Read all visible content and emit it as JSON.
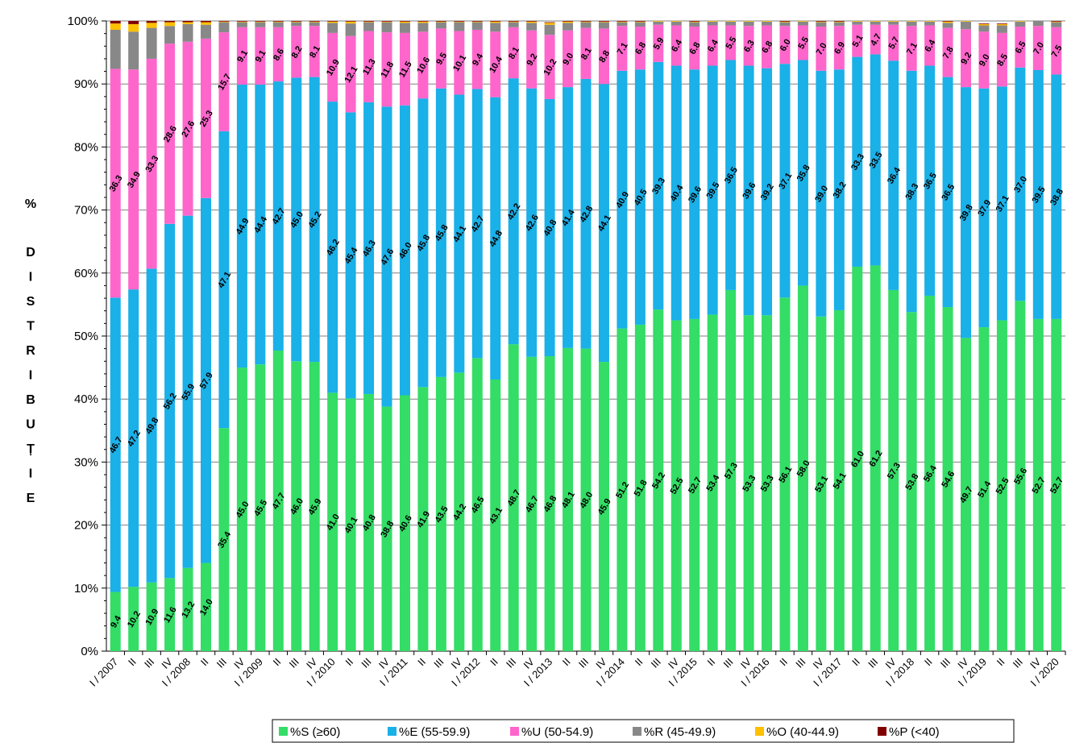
{
  "chart_data": {
    "type": "bar",
    "stacked": true,
    "ylabel": "% DISTRIBUȚIE",
    "ylim": [
      0,
      100
    ],
    "yticks": [
      "0%",
      "10%",
      "20%",
      "30%",
      "40%",
      "50%",
      "60%",
      "70%",
      "80%",
      "90%",
      "100%"
    ],
    "grid": true,
    "legend_position": "bottom",
    "categories": [
      "I / 2007",
      "II",
      "III",
      "IV",
      "I / 2008",
      "II",
      "III",
      "IV",
      "I / 2009",
      "II",
      "III",
      "IV",
      "I / 2010",
      "II",
      "III",
      "IV",
      "I / 2011",
      "II",
      "III",
      "IV",
      "I / 2012",
      "II",
      "III",
      "IV",
      "I / 2013",
      "II",
      "III",
      "IV",
      "I / 2014",
      "II",
      "III",
      "IV",
      "I / 2015",
      "II",
      "III",
      "IV",
      "I / 2016",
      "II",
      "III",
      "IV",
      "I / 2017",
      "II",
      "III",
      "IV",
      "I / 2018",
      "II",
      "III",
      "IV",
      "I / 2019",
      "II",
      "III",
      "IV",
      "I / 2020"
    ],
    "series": [
      {
        "name": "%S (≥60)",
        "color": "#33dd66",
        "labeled": true,
        "values": [
          9.4,
          10.2,
          10.9,
          11.6,
          13.2,
          14.0,
          35.4,
          45.0,
          45.5,
          47.7,
          46.0,
          45.9,
          41.0,
          40.1,
          40.8,
          38.8,
          40.6,
          41.9,
          43.5,
          44.2,
          46.5,
          43.1,
          48.7,
          46.7,
          46.8,
          48.1,
          48.0,
          45.9,
          51.2,
          51.8,
          54.2,
          52.5,
          52.7,
          53.4,
          57.3,
          53.3,
          53.3,
          56.1,
          58.0,
          53.1,
          54.1,
          61.0,
          61.2,
          57.3,
          53.8,
          56.4,
          54.6,
          49.7,
          51.4,
          52.5,
          55.6,
          52.7,
          52.7
        ],
        "labels": [
          "9.4",
          "10.2",
          "10.9",
          "11.6",
          "13.2",
          "14.0",
          "35.4",
          "45.0",
          "45.5",
          "47.7",
          "46.0",
          "45.9",
          "41.0",
          "40.1",
          "40.8",
          "38.8",
          "40.6",
          "41.9",
          "43.5",
          "44.2",
          "46.5",
          "43.1",
          "48.7",
          "46.7",
          "46.8",
          "48.1",
          "48.0",
          "45.9",
          "51.2",
          "51.8",
          "54.2",
          "52.5",
          "52.7",
          "53.4",
          "57.3",
          "53.3",
          "53.3",
          "56.1",
          "58.0",
          "53.1",
          "54.1",
          "61.0",
          "61.2",
          "57.3",
          "53.8",
          "56.4",
          "54.6",
          "49.7",
          "51.4",
          "52.5",
          "55.6",
          "52.7",
          "52.7"
        ]
      },
      {
        "name": "%E (55-59.9)",
        "color": "#1ab0e8",
        "labeled": true,
        "values": [
          46.7,
          47.2,
          49.8,
          56.2,
          55.9,
          57.9,
          47.1,
          44.9,
          44.4,
          42.7,
          45.0,
          45.2,
          46.2,
          45.4,
          46.3,
          47.6,
          46.0,
          45.8,
          45.8,
          44.1,
          42.7,
          44.8,
          42.2,
          42.6,
          40.8,
          41.4,
          42.8,
          44.1,
          40.9,
          40.5,
          39.3,
          40.4,
          39.6,
          39.5,
          36.5,
          39.6,
          39.2,
          37.1,
          35.8,
          39.0,
          38.2,
          33.3,
          33.5,
          36.4,
          38.3,
          36.5,
          36.5,
          39.8,
          37.9,
          37.1,
          37.0,
          39.5,
          38.8
        ],
        "labels": [
          "46.7",
          "47.2",
          "49.8",
          "56.2",
          "55.9",
          "57.9",
          "47.1",
          "44.9",
          "44.4",
          "42.7",
          "45.0",
          "45.2",
          "46.2",
          "45.4",
          "46.3",
          "47.6",
          "46.0",
          "45.8",
          "45.8",
          "44.1",
          "42.7",
          "44.8",
          "42.2",
          "42.6",
          "40.8",
          "41.4",
          "42.8",
          "44.1",
          "40.9",
          "40.5",
          "39.3",
          "40.4",
          "39.6",
          "39.5",
          "36.5",
          "39.6",
          "39.2",
          "37.1",
          "35.8",
          "39.0",
          "38.2",
          "33.3",
          "33.5",
          "36.4",
          "38.3",
          "36.5",
          "36.5",
          "39.8",
          "37.9",
          "37.1",
          "37.0",
          "39.5",
          "38.8"
        ]
      },
      {
        "name": "%U (50-54.9)",
        "color": "#ff66cc",
        "labeled": true,
        "values": [
          36.3,
          34.9,
          33.3,
          28.6,
          27.6,
          25.3,
          15.7,
          9.1,
          9.1,
          8.6,
          8.2,
          8.1,
          10.9,
          12.1,
          11.3,
          11.8,
          11.5,
          10.6,
          9.5,
          10.1,
          9.4,
          10.4,
          8.1,
          9.2,
          10.2,
          9.0,
          8.1,
          8.8,
          7.1,
          6.8,
          5.9,
          6.4,
          6.8,
          6.4,
          5.5,
          6.3,
          6.8,
          6.0,
          5.5,
          7.0,
          6.9,
          5.1,
          4.7,
          5.7,
          7.1,
          6.4,
          7.8,
          9.2,
          9.0,
          8.5,
          6.5,
          7.0,
          7.5
        ],
        "labels": [
          "36.3",
          "34.9",
          "33.3",
          "28.6",
          "27.6",
          "25.3",
          "15.7",
          "9.1",
          "9.1",
          "8.6",
          "8.2",
          "8.1",
          "10.9",
          "12.1",
          "11.3",
          "11.8",
          "11.5",
          "10.6",
          "9.5",
          "10.1",
          "9.4",
          "10.4",
          "8.1",
          "9.2",
          "10.2",
          "9.0",
          "8.1",
          "8.8",
          "7.1",
          "6.8",
          "5.9",
          "6.4",
          "6.8",
          "6.4",
          "5.5",
          "6.3",
          "6.8",
          "6.0",
          "5.5",
          "7.0",
          "6.9",
          "5.1",
          "4.7",
          "5.7",
          "7.1",
          "6.4",
          "7.8",
          "9.2",
          "9.0",
          "8.5",
          "6.5",
          "7.0",
          "7.5"
        ]
      },
      {
        "name": "%R (45-49.9)",
        "color": "#888888",
        "labeled": false,
        "values": [
          6.2,
          6.0,
          4.9,
          2.8,
          2.8,
          2.2,
          1.6,
          0.8,
          0.8,
          0.8,
          0.6,
          0.6,
          1.6,
          2.0,
          1.4,
          1.6,
          1.6,
          1.4,
          1.0,
          1.4,
          1.2,
          1.4,
          0.8,
          1.2,
          1.6,
          1.2,
          0.9,
          1.0,
          0.6,
          0.7,
          0.5,
          0.6,
          0.7,
          0.6,
          0.6,
          0.7,
          0.6,
          0.6,
          0.6,
          0.7,
          0.6,
          0.5,
          0.5,
          0.5,
          0.7,
          0.6,
          0.8,
          1.2,
          1.0,
          1.2,
          0.8,
          0.8,
          0.8
        ]
      },
      {
        "name": "%O (40-44.9)",
        "color": "#ffc000",
        "labeled": false,
        "values": [
          1.0,
          1.2,
          0.8,
          0.6,
          0.3,
          0.4,
          0.1,
          0.1,
          0.1,
          0.1,
          0.1,
          0.1,
          0.2,
          0.3,
          0.1,
          0.1,
          0.2,
          0.2,
          0.1,
          0.1,
          0.1,
          0.2,
          0.1,
          0.2,
          0.3,
          0.2,
          0.1,
          0.1,
          0.1,
          0.1,
          0.1,
          0.1,
          0.1,
          0.1,
          0.1,
          0.1,
          0.1,
          0.1,
          0.1,
          0.1,
          0.1,
          0.1,
          0.1,
          0.1,
          0.1,
          0.1,
          0.2,
          0.1,
          0.2,
          0.2,
          0.1,
          0.1,
          0.1
        ]
      },
      {
        "name": "%P (<40)",
        "color": "#800000",
        "labeled": false,
        "values": [
          0.4,
          0.5,
          0.3,
          0.2,
          0.2,
          0.2,
          0.1,
          0.1,
          0.1,
          0.1,
          0.1,
          0.1,
          0.1,
          0.1,
          0.1,
          0.1,
          0.1,
          0.1,
          0.1,
          0.1,
          0.1,
          0.1,
          0.1,
          0.1,
          0.1,
          0.1,
          0.1,
          0.1,
          0.1,
          0.1,
          0.1,
          0.1,
          0.1,
          0.1,
          0.1,
          0.1,
          0.1,
          0.1,
          0.1,
          0.1,
          0.1,
          0.1,
          0.1,
          0.1,
          0.1,
          0.1,
          0.1,
          0.1,
          0.1,
          0.1,
          0.1,
          0.1,
          0.1
        ]
      }
    ]
  }
}
